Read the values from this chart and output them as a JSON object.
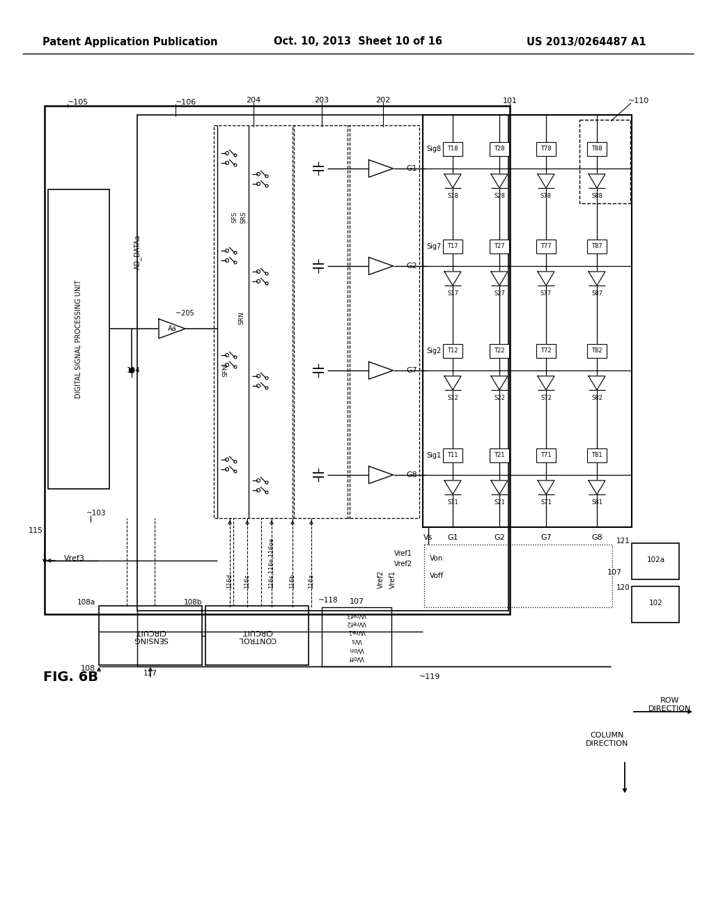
{
  "header_left": "Patent Application Publication",
  "header_center": "Oct. 10, 2013  Sheet 10 of 16",
  "header_right": "US 2013/0264487 A1",
  "fig_label": "FIG. 6B",
  "bg": "#ffffff",
  "lc": "#000000"
}
